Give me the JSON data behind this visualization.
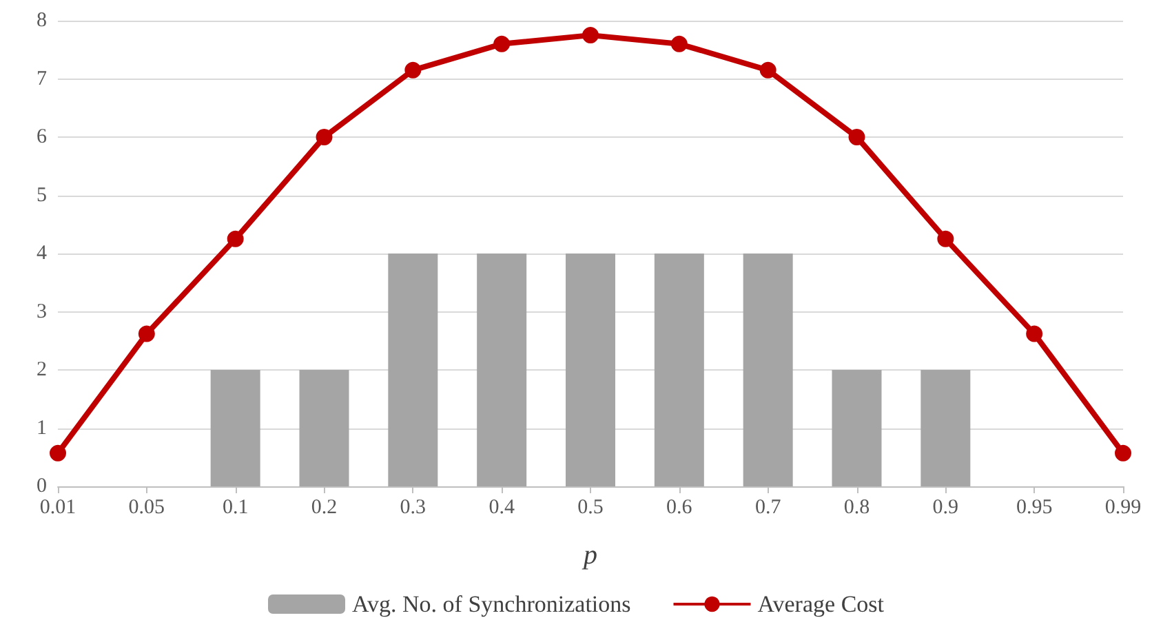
{
  "chart_data": {
    "type": "bar",
    "xlabel": "p",
    "categories": [
      "0.01",
      "0.05",
      "0.1",
      "0.2",
      "0.3",
      "0.4",
      "0.5",
      "0.6",
      "0.7",
      "0.8",
      "0.9",
      "0.95",
      "0.99"
    ],
    "series": [
      {
        "name": "Avg. No. of Synchronizations",
        "color": "#a5a5a5",
        "values": [
          null,
          null,
          2,
          2,
          4,
          4,
          4,
          4,
          4,
          2,
          2,
          null,
          null
        ]
      },
      {
        "name": "Average Cost",
        "type": "line",
        "color": "#c00000",
        "marker": "circle",
        "values": [
          0.57,
          2.62,
          4.25,
          6.0,
          7.15,
          7.6,
          7.75,
          7.6,
          7.15,
          6.0,
          4.25,
          2.62,
          0.57
        ]
      }
    ],
    "ylim": [
      0,
      8
    ],
    "yticks": [
      0,
      1,
      2,
      3,
      4,
      5,
      6,
      7,
      8
    ],
    "grid": "y",
    "legend": "bottom"
  }
}
